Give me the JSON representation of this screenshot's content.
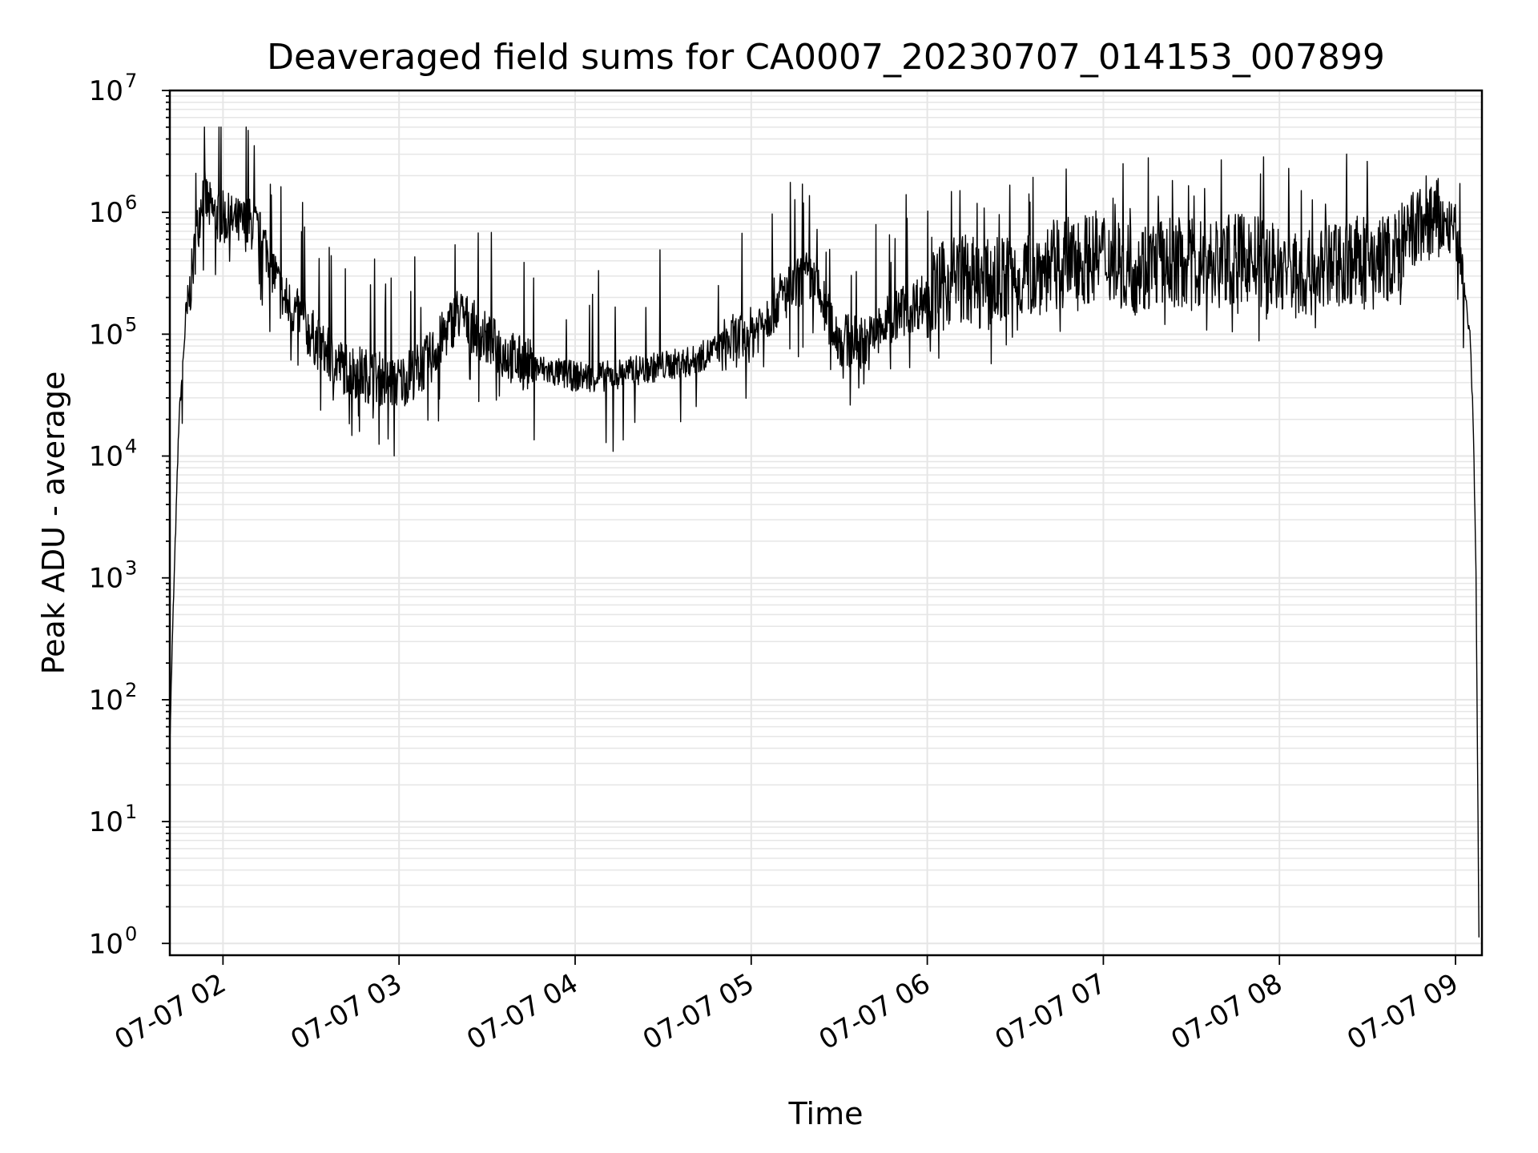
{
  "chart_data": {
    "type": "line",
    "title": "Deaveraged field sums for CA0007_20230707_014153_007899",
    "xlabel": "Time",
    "ylabel": "Peak ADU - average",
    "yscale": "log",
    "ylim": [
      0.8,
      10000000
    ],
    "xlim": [
      "2023-07-07 01:41:53",
      "2023-07-07 09:09"
    ],
    "grid": true,
    "line_color": "#000000",
    "grid_color": "#e6e6e6",
    "x_tick_labels": [
      "07-07 02",
      "07-07 03",
      "07-07 04",
      "07-07 05",
      "07-07 06",
      "07-07 07",
      "07-07 08",
      "07-07 09"
    ],
    "y_tick_labels": [
      {
        "base": "10",
        "exp": "0"
      },
      {
        "base": "10",
        "exp": "1"
      },
      {
        "base": "10",
        "exp": "2"
      },
      {
        "base": "10",
        "exp": "3"
      },
      {
        "base": "10",
        "exp": "4"
      },
      {
        "base": "10",
        "exp": "5"
      },
      {
        "base": "10",
        "exp": "6"
      },
      {
        "base": "10",
        "exp": "7"
      }
    ],
    "series": [
      {
        "x": [
          "01:42",
          "01:43",
          "01:45",
          "01:47",
          "01:50",
          "01:53",
          "01:56",
          "02:00",
          "02:05",
          "02:10",
          "02:15",
          "02:20",
          "02:25",
          "02:30",
          "02:35",
          "02:40",
          "02:45",
          "02:50",
          "03:00",
          "03:10",
          "03:20",
          "03:30",
          "03:40",
          "03:50",
          "04:00",
          "04:10",
          "04:20",
          "04:30",
          "04:40",
          "04:50",
          "05:00",
          "05:10",
          "05:20",
          "05:30",
          "05:40",
          "05:50",
          "06:00",
          "06:10",
          "06:20",
          "06:30",
          "06:40",
          "06:50",
          "07:00",
          "07:10",
          "07:20",
          "07:30",
          "07:40",
          "07:50",
          "08:00",
          "08:10",
          "08:20",
          "08:30",
          "08:40",
          "08:50",
          "09:00",
          "09:03",
          "09:05",
          "09:06",
          "09:07",
          "09:08"
        ],
        "y": [
          60,
          500,
          20000,
          100000,
          400000,
          1500000,
          1000000,
          900000,
          800000,
          800000,
          500000,
          200000,
          150000,
          100000,
          70000,
          55000,
          50000,
          45000,
          40000,
          60000,
          150000,
          90000,
          60000,
          50000,
          45000,
          45000,
          50000,
          55000,
          60000,
          80000,
          100000,
          200000,
          300000,
          90000,
          85000,
          150000,
          200000,
          300000,
          250000,
          300000,
          350000,
          400000,
          450000,
          350000,
          400000,
          380000,
          400000,
          420000,
          350000,
          300000,
          400000,
          400000,
          450000,
          900000,
          700000,
          250000,
          90000,
          20000,
          1000,
          1
        ]
      }
    ]
  }
}
